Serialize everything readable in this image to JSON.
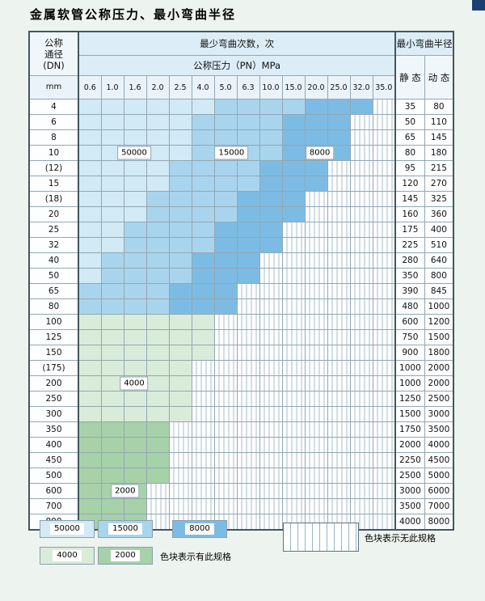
{
  "title": "金属软管公称压力、最小弯曲半径",
  "colors": {
    "cycles": {
      "50000": "#d2e9f6",
      "15000": "#a9d4ee",
      "8000": "#7cbce4",
      "4000": "#d9ecd9",
      "2000": "#a7d1a9"
    }
  },
  "chart_data": {
    "type": "table",
    "title": "金属软管公称压力、最小弯曲半径",
    "header": {
      "dn_lines": [
        "公称",
        "通径",
        "(DN)"
      ],
      "dn_unit": "mm",
      "bend_cycles_label": "最少弯曲次数，次",
      "pressure_label": "公称压力（PN）MPa",
      "radius_label": "最小弯曲半径",
      "static_label": "静 态",
      "dynamic_label": "动 态"
    },
    "pressure_columns": [
      "0.6",
      "1.0",
      "1.6",
      "2.0",
      "2.5",
      "4.0",
      "5.0",
      "6.3",
      "10.0",
      "15.0",
      "20.0",
      "25.0",
      "32.0",
      "35.0"
    ],
    "rows": [
      {
        "dn": "4",
        "static": "35",
        "dynamic": "80",
        "bands": [
          {
            "cycles": "50000",
            "from": 0,
            "to": 5
          },
          {
            "cycles": "15000",
            "from": 6,
            "to": 9
          },
          {
            "cycles": "8000",
            "from": 10,
            "to": 12
          }
        ]
      },
      {
        "dn": "6",
        "static": "50",
        "dynamic": "110",
        "bands": [
          {
            "cycles": "50000",
            "from": 0,
            "to": 4
          },
          {
            "cycles": "15000",
            "from": 5,
            "to": 8
          },
          {
            "cycles": "8000",
            "from": 9,
            "to": 11
          }
        ]
      },
      {
        "dn": "8",
        "static": "65",
        "dynamic": "145",
        "bands": [
          {
            "cycles": "50000",
            "from": 0,
            "to": 4
          },
          {
            "cycles": "15000",
            "from": 5,
            "to": 8
          },
          {
            "cycles": "8000",
            "from": 9,
            "to": 11
          }
        ]
      },
      {
        "dn": "10",
        "static": "80",
        "dynamic": "180",
        "bands": [
          {
            "cycles": "50000",
            "from": 0,
            "to": 4
          },
          {
            "cycles": "15000",
            "from": 5,
            "to": 8
          },
          {
            "cycles": "8000",
            "from": 9,
            "to": 11
          }
        ]
      },
      {
        "dn": "(12)",
        "static": "95",
        "dynamic": "215",
        "bands": [
          {
            "cycles": "50000",
            "from": 0,
            "to": 3
          },
          {
            "cycles": "15000",
            "from": 4,
            "to": 7
          },
          {
            "cycles": "8000",
            "from": 8,
            "to": 10
          }
        ]
      },
      {
        "dn": "15",
        "static": "120",
        "dynamic": "270",
        "bands": [
          {
            "cycles": "50000",
            "from": 0,
            "to": 3
          },
          {
            "cycles": "15000",
            "from": 4,
            "to": 7
          },
          {
            "cycles": "8000",
            "from": 8,
            "to": 10
          }
        ]
      },
      {
        "dn": "(18)",
        "static": "145",
        "dynamic": "325",
        "bands": [
          {
            "cycles": "50000",
            "from": 0,
            "to": 2
          },
          {
            "cycles": "15000",
            "from": 3,
            "to": 6
          },
          {
            "cycles": "8000",
            "from": 7,
            "to": 9
          }
        ]
      },
      {
        "dn": "20",
        "static": "160",
        "dynamic": "360",
        "bands": [
          {
            "cycles": "50000",
            "from": 0,
            "to": 2
          },
          {
            "cycles": "15000",
            "from": 3,
            "to": 6
          },
          {
            "cycles": "8000",
            "from": 7,
            "to": 9
          }
        ]
      },
      {
        "dn": "25",
        "static": "175",
        "dynamic": "400",
        "bands": [
          {
            "cycles": "50000",
            "from": 0,
            "to": 1
          },
          {
            "cycles": "15000",
            "from": 2,
            "to": 5
          },
          {
            "cycles": "8000",
            "from": 6,
            "to": 8
          }
        ]
      },
      {
        "dn": "32",
        "static": "225",
        "dynamic": "510",
        "bands": [
          {
            "cycles": "50000",
            "from": 0,
            "to": 1
          },
          {
            "cycles": "15000",
            "from": 2,
            "to": 5
          },
          {
            "cycles": "8000",
            "from": 6,
            "to": 8
          }
        ]
      },
      {
        "dn": "40",
        "static": "280",
        "dynamic": "640",
        "bands": [
          {
            "cycles": "50000",
            "from": 0,
            "to": 0
          },
          {
            "cycles": "15000",
            "from": 1,
            "to": 4
          },
          {
            "cycles": "8000",
            "from": 5,
            "to": 7
          }
        ]
      },
      {
        "dn": "50",
        "static": "350",
        "dynamic": "800",
        "bands": [
          {
            "cycles": "50000",
            "from": 0,
            "to": 0
          },
          {
            "cycles": "15000",
            "from": 1,
            "to": 4
          },
          {
            "cycles": "8000",
            "from": 5,
            "to": 7
          }
        ]
      },
      {
        "dn": "65",
        "static": "390",
        "dynamic": "845",
        "bands": [
          {
            "cycles": "15000",
            "from": 0,
            "to": 3
          },
          {
            "cycles": "8000",
            "from": 4,
            "to": 6
          }
        ]
      },
      {
        "dn": "80",
        "static": "480",
        "dynamic": "1000",
        "bands": [
          {
            "cycles": "15000",
            "from": 0,
            "to": 3
          },
          {
            "cycles": "8000",
            "from": 4,
            "to": 6
          }
        ]
      },
      {
        "dn": "100",
        "static": "600",
        "dynamic": "1200",
        "bands": [
          {
            "cycles": "4000",
            "from": 0,
            "to": 5
          }
        ]
      },
      {
        "dn": "125",
        "static": "750",
        "dynamic": "1500",
        "bands": [
          {
            "cycles": "4000",
            "from": 0,
            "to": 5
          }
        ]
      },
      {
        "dn": "150",
        "static": "900",
        "dynamic": "1800",
        "bands": [
          {
            "cycles": "4000",
            "from": 0,
            "to": 5
          }
        ]
      },
      {
        "dn": "(175)",
        "static": "1000",
        "dynamic": "2000",
        "bands": [
          {
            "cycles": "4000",
            "from": 0,
            "to": 4
          }
        ]
      },
      {
        "dn": "200",
        "static": "1000",
        "dynamic": "2000",
        "bands": [
          {
            "cycles": "4000",
            "from": 0,
            "to": 4
          }
        ]
      },
      {
        "dn": "250",
        "static": "1250",
        "dynamic": "2500",
        "bands": [
          {
            "cycles": "4000",
            "from": 0,
            "to": 4
          }
        ]
      },
      {
        "dn": "300",
        "static": "1500",
        "dynamic": "3000",
        "bands": [
          {
            "cycles": "4000",
            "from": 0,
            "to": 4
          }
        ]
      },
      {
        "dn": "350",
        "static": "1750",
        "dynamic": "3500",
        "bands": [
          {
            "cycles": "2000",
            "from": 0,
            "to": 3
          }
        ]
      },
      {
        "dn": "400",
        "static": "2000",
        "dynamic": "4000",
        "bands": [
          {
            "cycles": "2000",
            "from": 0,
            "to": 3
          }
        ]
      },
      {
        "dn": "450",
        "static": "2250",
        "dynamic": "4500",
        "bands": [
          {
            "cycles": "2000",
            "from": 0,
            "to": 3
          }
        ]
      },
      {
        "dn": "500",
        "static": "2500",
        "dynamic": "5000",
        "bands": [
          {
            "cycles": "2000",
            "from": 0,
            "to": 3
          }
        ]
      },
      {
        "dn": "600",
        "static": "3000",
        "dynamic": "6000",
        "bands": [
          {
            "cycles": "2000",
            "from": 0,
            "to": 2
          }
        ]
      },
      {
        "dn": "700",
        "static": "3500",
        "dynamic": "7000",
        "bands": [
          {
            "cycles": "2000",
            "from": 0,
            "to": 2
          }
        ]
      },
      {
        "dn": "800",
        "static": "4000",
        "dynamic": "8000",
        "bands": [
          {
            "cycles": "2000",
            "from": 0,
            "to": 2
          }
        ]
      }
    ],
    "cell_labels": [
      {
        "text": "50000",
        "row_dn": "10",
        "col_center": 2.5
      },
      {
        "text": "15000",
        "row_dn": "10",
        "col_center": 6.8
      },
      {
        "text": "8000",
        "row_dn": "10",
        "col_center": 10.7
      },
      {
        "text": "4000",
        "row_dn": "200",
        "col_center": 2.5
      },
      {
        "text": "2000",
        "row_dn": "600",
        "col_center": 2.1
      }
    ]
  },
  "legend": {
    "items": [
      {
        "label": "50000",
        "cycles": "50000"
      },
      {
        "label": "15000",
        "cycles": "15000"
      },
      {
        "label": "8000",
        "cycles": "8000"
      },
      {
        "label": "4000",
        "cycles": "4000"
      },
      {
        "label": "2000",
        "cycles": "2000"
      }
    ],
    "has_spec_label": "色块表示有此规格",
    "no_spec_label": "色块表示无此规格"
  }
}
